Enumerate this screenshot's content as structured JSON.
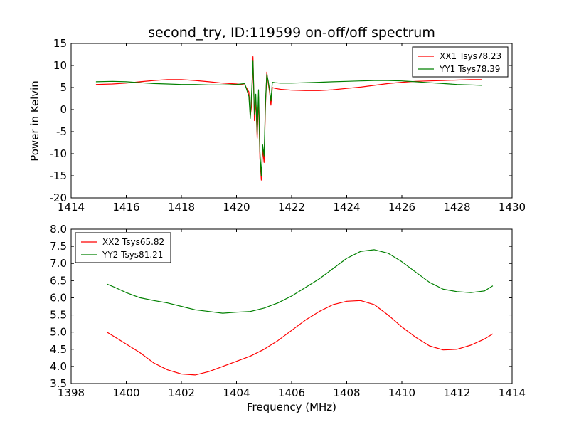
{
  "figure": {
    "title": "second_try, ID:119599 on-off/off spectrum"
  },
  "chart_data": [
    {
      "type": "line",
      "title": "second_try, ID:119599 on-off/off spectrum",
      "xlabel": "",
      "ylabel": "Power in Kelvin",
      "xlim": [
        1414,
        1430
      ],
      "ylim": [
        -20,
        15
      ],
      "xticks": [
        1414,
        1416,
        1418,
        1420,
        1422,
        1424,
        1426,
        1428,
        1430
      ],
      "yticks": [
        -20,
        -15,
        -10,
        -5,
        0,
        5,
        10,
        15
      ],
      "grid": false,
      "legend": "top-right",
      "series": [
        {
          "name": "XX1 Tsys78.23",
          "color": "#ff0000",
          "x": [
            1414.9,
            1415.5,
            1416.0,
            1416.5,
            1417.0,
            1417.5,
            1418.0,
            1418.5,
            1419.0,
            1419.5,
            1420.0,
            1420.3,
            1420.45,
            1420.5,
            1420.55,
            1420.6,
            1420.65,
            1420.7,
            1420.75,
            1420.8,
            1420.85,
            1420.9,
            1420.95,
            1421.0,
            1421.05,
            1421.1,
            1421.15,
            1421.2,
            1421.25,
            1421.3,
            1421.4,
            1421.6,
            1422.0,
            1422.5,
            1423.0,
            1423.5,
            1424.0,
            1424.5,
            1425.0,
            1425.5,
            1426.0,
            1426.5,
            1427.0,
            1427.5,
            1428.0,
            1428.5,
            1428.9
          ],
          "y": [
            5.7,
            5.8,
            6.0,
            6.3,
            6.6,
            6.8,
            6.8,
            6.6,
            6.3,
            6.0,
            5.8,
            5.6,
            4.0,
            -1.5,
            1.0,
            12.0,
            -2.5,
            2.0,
            -6.5,
            3.0,
            -11.0,
            -16.0,
            -9.0,
            -12.0,
            0.5,
            8.5,
            6.0,
            4.0,
            1.0,
            5.0,
            4.8,
            4.6,
            4.4,
            4.3,
            4.3,
            4.5,
            4.8,
            5.1,
            5.5,
            5.9,
            6.2,
            6.4,
            6.5,
            6.6,
            6.7,
            6.8,
            6.8
          ]
        },
        {
          "name": "YY1 Tsys78.39",
          "color": "#008000",
          "x": [
            1414.9,
            1415.5,
            1416.0,
            1416.5,
            1417.0,
            1417.5,
            1418.0,
            1418.5,
            1419.0,
            1419.5,
            1420.0,
            1420.3,
            1420.45,
            1420.5,
            1420.55,
            1420.6,
            1420.65,
            1420.7,
            1420.75,
            1420.8,
            1420.85,
            1420.9,
            1420.95,
            1421.0,
            1421.05,
            1421.1,
            1421.15,
            1421.2,
            1421.25,
            1421.3,
            1421.4,
            1421.6,
            1422.0,
            1422.5,
            1423.0,
            1423.5,
            1424.0,
            1424.5,
            1425.0,
            1425.5,
            1426.0,
            1426.5,
            1427.0,
            1427.5,
            1428.0,
            1428.5,
            1428.9
          ],
          "y": [
            6.3,
            6.4,
            6.3,
            6.1,
            5.9,
            5.8,
            5.7,
            5.7,
            5.6,
            5.6,
            5.7,
            5.9,
            3.0,
            -2.0,
            4.0,
            11.0,
            -1.0,
            3.5,
            -5.5,
            4.5,
            -9.5,
            -15.0,
            -8.0,
            -10.5,
            1.5,
            8.0,
            6.5,
            4.5,
            2.0,
            6.2,
            6.1,
            6.0,
            6.0,
            6.1,
            6.2,
            6.3,
            6.4,
            6.5,
            6.6,
            6.6,
            6.5,
            6.3,
            6.1,
            5.9,
            5.7,
            5.6,
            5.5
          ]
        }
      ]
    },
    {
      "type": "line",
      "title": "",
      "xlabel": "Frequency (MHz)",
      "ylabel": "",
      "xlim": [
        1398,
        1414
      ],
      "ylim": [
        3.5,
        8.0
      ],
      "xticks": [
        1398,
        1400,
        1402,
        1404,
        1406,
        1408,
        1410,
        1412,
        1414
      ],
      "yticks": [
        3.5,
        4.0,
        4.5,
        5.0,
        5.5,
        6.0,
        6.5,
        7.0,
        7.5,
        8.0
      ],
      "grid": false,
      "legend": "top-left",
      "series": [
        {
          "name": "XX2 Tsys65.82",
          "color": "#ff0000",
          "x": [
            1399.3,
            1399.6,
            1400.0,
            1400.5,
            1401.0,
            1401.5,
            1402.0,
            1402.5,
            1403.0,
            1403.5,
            1404.0,
            1404.5,
            1405.0,
            1405.5,
            1406.0,
            1406.5,
            1407.0,
            1407.5,
            1408.0,
            1408.5,
            1409.0,
            1409.5,
            1410.0,
            1410.5,
            1411.0,
            1411.5,
            1412.0,
            1412.5,
            1413.0,
            1413.3
          ],
          "y": [
            5.0,
            4.85,
            4.65,
            4.4,
            4.1,
            3.9,
            3.78,
            3.75,
            3.85,
            4.0,
            4.15,
            4.3,
            4.5,
            4.75,
            5.05,
            5.35,
            5.6,
            5.8,
            5.9,
            5.92,
            5.8,
            5.5,
            5.15,
            4.85,
            4.6,
            4.48,
            4.5,
            4.62,
            4.8,
            4.95
          ]
        },
        {
          "name": "YY2 Tsys81.21",
          "color": "#008000",
          "x": [
            1399.3,
            1399.6,
            1400.0,
            1400.5,
            1401.0,
            1401.5,
            1402.0,
            1402.5,
            1403.0,
            1403.5,
            1404.0,
            1404.5,
            1405.0,
            1405.5,
            1406.0,
            1406.5,
            1407.0,
            1407.5,
            1408.0,
            1408.5,
            1409.0,
            1409.5,
            1410.0,
            1410.5,
            1411.0,
            1411.5,
            1412.0,
            1412.5,
            1413.0,
            1413.3
          ],
          "y": [
            6.4,
            6.3,
            6.15,
            6.0,
            5.92,
            5.85,
            5.75,
            5.65,
            5.6,
            5.55,
            5.58,
            5.6,
            5.7,
            5.85,
            6.05,
            6.3,
            6.55,
            6.85,
            7.15,
            7.35,
            7.4,
            7.3,
            7.05,
            6.75,
            6.45,
            6.25,
            6.18,
            6.15,
            6.2,
            6.35
          ]
        }
      ]
    }
  ]
}
